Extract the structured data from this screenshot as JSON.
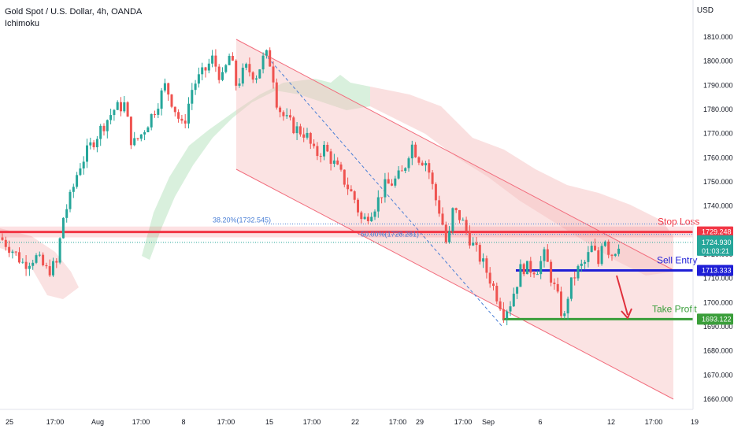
{
  "header": {
    "symbol": "Gold Spot / U.S. Dollar, 4h, OANDA",
    "indicator": "Ichimoku",
    "currency": "USD"
  },
  "colors": {
    "up": "#26a69a",
    "down": "#ef5350",
    "stop_loss": "#f23645",
    "sell_entry": "#1f1fd6",
    "take_profit": "#3a9e3a",
    "channel_fill": "#f7c1c1",
    "channel_line": "#f26d7d",
    "cloud_green": "#b9e3c1",
    "cloud_red": "#f6c6c6",
    "fib": "#4a7fd6",
    "arrow": "#e0303c"
  },
  "chart_data": {
    "type": "candlestick",
    "ylim": [
      1655,
      1815
    ],
    "y_ticks": [
      "1810.000",
      "1800.000",
      "1790.000",
      "1780.000",
      "1770.000",
      "1760.000",
      "1750.000",
      "1740.000",
      "1730.000",
      "1720.000",
      "1710.000",
      "1700.000",
      "1690.000",
      "1680.000",
      "1670.000",
      "1660.000"
    ],
    "x_ticks": [
      "25",
      "17:00",
      "Aug",
      "17:00",
      "8",
      "17:00",
      "15",
      "17:00",
      "22",
      "17:00",
      "29",
      "17:00",
      "Sep",
      "6",
      "12",
      "17:00",
      "19"
    ],
    "price_path": [
      [
        0,
        1727
      ],
      [
        15,
        1722
      ],
      [
        30,
        1716
      ],
      [
        45,
        1719
      ],
      [
        60,
        1713
      ],
      [
        72,
        1716
      ],
      [
        80,
        1735
      ],
      [
        90,
        1744
      ],
      [
        100,
        1756
      ],
      [
        115,
        1765
      ],
      [
        130,
        1773
      ],
      [
        145,
        1780
      ],
      [
        158,
        1782
      ],
      [
        168,
        1765
      ],
      [
        180,
        1770
      ],
      [
        195,
        1779
      ],
      [
        210,
        1790
      ],
      [
        220,
        1782
      ],
      [
        232,
        1772
      ],
      [
        245,
        1790
      ],
      [
        258,
        1795
      ],
      [
        270,
        1801
      ],
      [
        282,
        1792
      ],
      [
        292,
        1803
      ],
      [
        300,
        1790
      ],
      [
        312,
        1797
      ],
      [
        325,
        1794
      ],
      [
        337,
        1803
      ],
      [
        345,
        1798
      ],
      [
        352,
        1782
      ],
      [
        362,
        1776
      ],
      [
        375,
        1772
      ],
      [
        388,
        1770
      ],
      [
        400,
        1761
      ],
      [
        412,
        1764
      ],
      [
        425,
        1757
      ],
      [
        438,
        1750
      ],
      [
        450,
        1743
      ],
      [
        460,
        1733
      ],
      [
        468,
        1737
      ],
      [
        478,
        1741
      ],
      [
        488,
        1748
      ],
      [
        500,
        1750
      ],
      [
        512,
        1754
      ],
      [
        522,
        1766
      ],
      [
        532,
        1760
      ],
      [
        542,
        1758
      ],
      [
        552,
        1744
      ],
      [
        560,
        1736
      ],
      [
        568,
        1722
      ],
      [
        575,
        1738
      ],
      [
        585,
        1735
      ],
      [
        593,
        1729
      ],
      [
        600,
        1724
      ],
      [
        612,
        1717
      ],
      [
        622,
        1710
      ],
      [
        632,
        1702
      ],
      [
        640,
        1696
      ],
      [
        648,
        1700
      ],
      [
        656,
        1708
      ],
      [
        662,
        1715
      ],
      [
        672,
        1714
      ],
      [
        682,
        1714
      ],
      [
        692,
        1720
      ],
      [
        700,
        1710
      ],
      [
        708,
        1702
      ],
      [
        716,
        1692
      ],
      [
        722,
        1705
      ],
      [
        732,
        1713
      ],
      [
        742,
        1716
      ],
      [
        752,
        1723
      ],
      [
        760,
        1716
      ],
      [
        766,
        1730
      ],
      [
        772,
        1722
      ],
      [
        778,
        1720
      ],
      [
        786,
        1725
      ]
    ],
    "channel": {
      "upper": [
        [
          1803,
          1715
        ],
        [
          1719,
          1713
        ]
      ],
      "lower": [
        [
          1768,
          1660
        ],
        [
          1660,
          1743
        ]
      ],
      "x_range": [
        "15",
        "Sep 12 + 17:00"
      ]
    },
    "ichimoku_cloud": {
      "note": "cloud shaded green then red behind price"
    },
    "fib_levels": [
      {
        "label": "38.20%(1732.545)",
        "value": 1732.545
      },
      {
        "label": "50.00%(1728.281)",
        "value": 1728.281
      }
    ],
    "horizontal_levels": [
      {
        "name": "Stop Loss",
        "value": 1729.248,
        "tag": "1729.248"
      },
      {
        "name": "Sell Entry",
        "value": 1713.333,
        "tag": "1713.333"
      },
      {
        "name": "Take Profit",
        "value": 1693.122,
        "tag": "1693.122"
      }
    ],
    "last_price": {
      "value": 1724.93,
      "tag": "1724.930",
      "countdown": "01:03:21"
    }
  }
}
